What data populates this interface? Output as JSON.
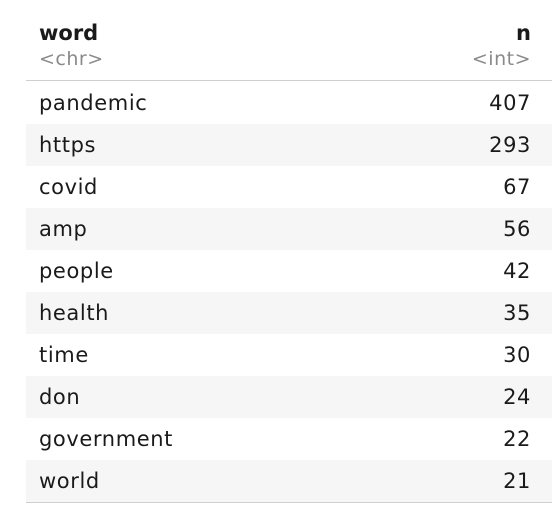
{
  "table": {
    "columns": [
      {
        "name": "word",
        "type": "<chr>"
      },
      {
        "name": "n",
        "type": "<int>"
      }
    ],
    "rows": [
      {
        "word": "pandemic",
        "n": "407"
      },
      {
        "word": "https",
        "n": "293"
      },
      {
        "word": "covid",
        "n": "67"
      },
      {
        "word": "amp",
        "n": "56"
      },
      {
        "word": "people",
        "n": "42"
      },
      {
        "word": "health",
        "n": "35"
      },
      {
        "word": "time",
        "n": "30"
      },
      {
        "word": "don",
        "n": "24"
      },
      {
        "word": "government",
        "n": "22"
      },
      {
        "word": "world",
        "n": "21"
      }
    ]
  }
}
